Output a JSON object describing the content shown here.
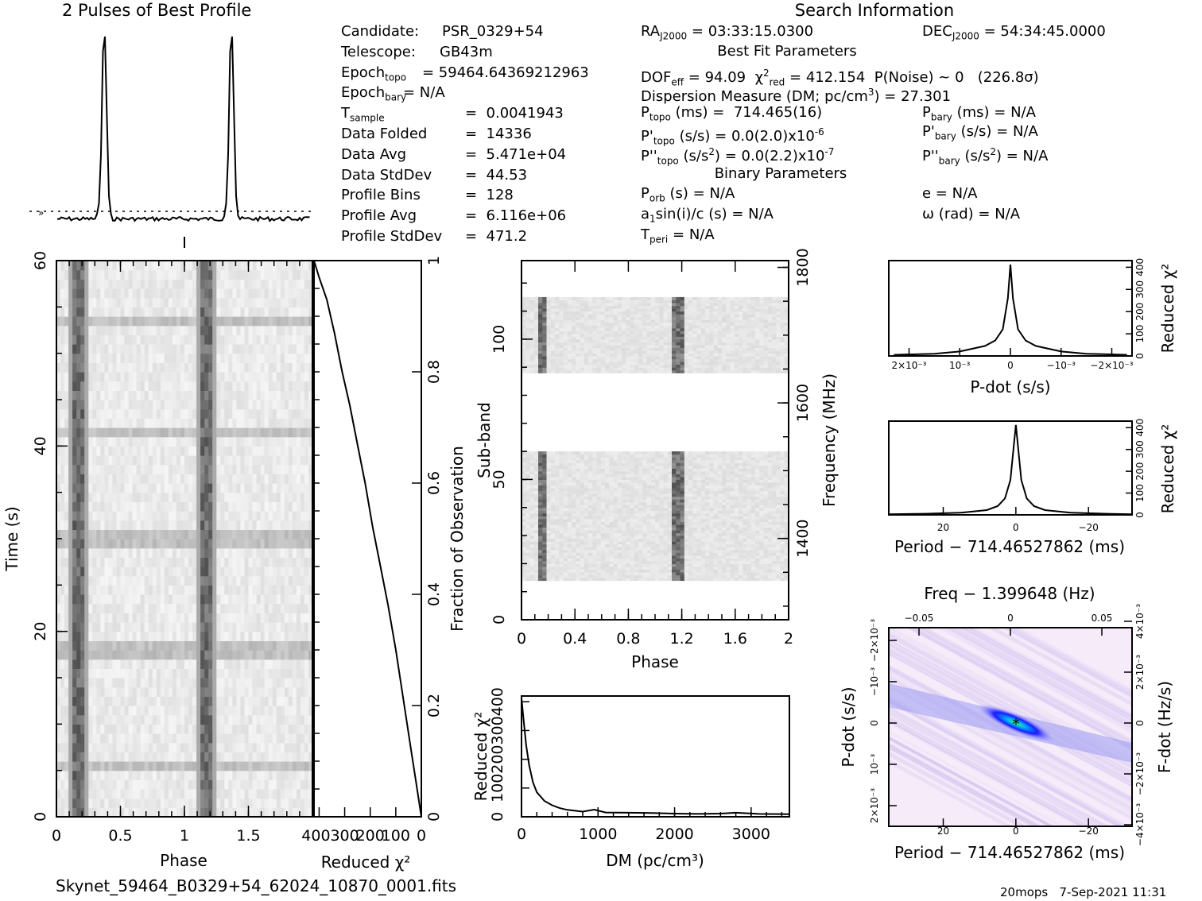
{
  "profile": {
    "title": "2 Pulses of Best Profile",
    "values": [
      0,
      0,
      0,
      0,
      0,
      0,
      0,
      0,
      0,
      0,
      0,
      0,
      0,
      0,
      0,
      0,
      0,
      0,
      0,
      0,
      0.02,
      0.08,
      0.35,
      0.92,
      1.0,
      0.55,
      0.12,
      0.02,
      0,
      0,
      0,
      0,
      0,
      0,
      0,
      0,
      0,
      0,
      0,
      0,
      0,
      0,
      0,
      0,
      0,
      0,
      0,
      0,
      0,
      0,
      0,
      0,
      0,
      0,
      0,
      0,
      0,
      0,
      0,
      0,
      0,
      0,
      0,
      0
    ]
  },
  "info": {
    "search_title": "Search Information",
    "col1": [
      {
        "k": "Candidate:",
        "v": "PSR_0329+54"
      },
      {
        "k": "Telescope:",
        "v": "GB43m"
      },
      {
        "k": "Epoch",
        "sub": "topo",
        "v": "= 59464.64369212963"
      },
      {
        "k": "Epoch",
        "sub": "bary",
        "v": "= N/A"
      },
      {
        "k": "T",
        "sub": "sample",
        "v": "=  0.0041943"
      },
      {
        "k": "Data Folded",
        "v": "=  14336"
      },
      {
        "k": "Data Avg",
        "v": "=  5.471e+04"
      },
      {
        "k": "Data StdDev",
        "v": "=  44.53"
      },
      {
        "k": "Profile Bins",
        "v": "=  128"
      },
      {
        "k": "Profile Avg",
        "v": "=  6.116e+06"
      },
      {
        "k": "Profile StdDev",
        "v": "=  471.2"
      }
    ],
    "ra": "RA",
    "ra_sub": "J2000",
    "ra_val": "= 03:33:15.0300",
    "dec": "DEC",
    "dec_sub": "J2000",
    "dec_val": "= 54:34:45.0000",
    "best_fit_title": "Best Fit Parameters",
    "dof": "DOF",
    "dof_sub": "eff",
    "dof_val": "= 94.09",
    "chi": "χ",
    "chi_sup": "2",
    "chi_sub": "red",
    "chi_val": "= 412.154",
    "pnoise": "P(Noise) ~ 0",
    "sigma": "(226.8σ)",
    "dm_line_a": "Dispersion Measure (DM; pc/cm",
    "dm_line_sup": "3",
    "dm_line_b": ") = 27.301",
    "ptopo": "P",
    "ptopo_sub": "topo",
    "ptopo_val": "(ms) =  714.465(16)",
    "pdtopo": "P'",
    "pdtopo_sub": "topo",
    "pdtopo_val": "(s/s) = 0.0(2.0)x10",
    "pdtopo_exp": "-6",
    "pddtopo": "P''",
    "pddtopo_sub": "topo",
    "pddtopo_val_a": "(s/s",
    "pddtopo_val_sup": "2",
    "pddtopo_val_b": ") = 0.0(2.2)x10",
    "pddtopo_exp": "-7",
    "pbary": "P",
    "pbary_sub": "bary",
    "pbary_val": "(ms) = N/A",
    "pdbary": "P'",
    "pdbary_sub": "bary",
    "pdbary_val": "(s/s) = N/A",
    "pddbary": "P''",
    "pddbary_sub": "bary",
    "pddbary_val_a": "(s/s",
    "pddbary_val_sup": "2",
    "pddbary_val_b": ") = N/A",
    "binary_title": "Binary Parameters",
    "porb": "P",
    "porb_sub": "orb",
    "porb_val": "(s) = N/A",
    "a1": "a",
    "a1_sub": "1",
    "a1_val": "sin(i)/c (s) = N/A",
    "tperi": "T",
    "tperi_sub": "peri",
    "tperi_val": "= N/A",
    "ecc": "e = N/A",
    "omega": "ω (rad) = N/A"
  },
  "chart_data": [
    {
      "type": "heatmap",
      "name": "time-phase",
      "xlabel": "Phase",
      "ylabel": "Time (s)",
      "xlim": [
        0,
        2
      ],
      "ylim": [
        0,
        60
      ],
      "xticks": [
        "0",
        "0.5",
        "1",
        "1.5"
      ],
      "yticks": [
        "0",
        "20",
        "40",
        "60"
      ],
      "pulse_phases": [
        0.15,
        1.15
      ],
      "bright_times": [
        5,
        17.5,
        29.5,
        41,
        53
      ]
    },
    {
      "type": "line",
      "name": "time-chi2",
      "xlabel": "Reduced χ²",
      "ylabel": "Fraction of Observation",
      "xticks": [
        "400",
        "300",
        "200",
        "100",
        "0"
      ],
      "yticks": [
        "0",
        "0.2",
        "0.4",
        "0.6",
        "0.8",
        "1"
      ],
      "x": [
        0,
        20,
        40,
        60,
        80,
        100,
        130,
        160,
        190,
        220,
        250,
        280,
        310,
        340,
        370,
        400,
        420
      ],
      "y": [
        0,
        0.06,
        0.12,
        0.18,
        0.24,
        0.3,
        0.38,
        0.45,
        0.52,
        0.6,
        0.67,
        0.74,
        0.8,
        0.87,
        0.93,
        0.97,
        1.0
      ]
    },
    {
      "type": "heatmap",
      "name": "subband-phase",
      "xlabel": "Phase",
      "ylabel": "Sub-band",
      "y2label": "Frequency (MHz)",
      "xlim": [
        0,
        2
      ],
      "xticks": [
        "0",
        "0.4",
        "0.8",
        "1.2",
        "1.6",
        "2"
      ],
      "yticks": [
        "0",
        "50",
        "100"
      ],
      "y2ticks": [
        "1400",
        "1600",
        "1800"
      ],
      "pulse_phases": [
        0.14,
        1.16
      ]
    },
    {
      "type": "line",
      "name": "dm-chi2",
      "xlabel": "DM (pc/cm³)",
      "ylabel": "Reduced χ²",
      "xticks": [
        "0",
        "1000",
        "2000",
        "3000"
      ],
      "yticks": [
        "0",
        "100",
        "200",
        "300",
        "400"
      ],
      "x": [
        0,
        30,
        60,
        100,
        150,
        200,
        300,
        400,
        500,
        600,
        800,
        950,
        1100,
        1400,
        1700,
        2000,
        2300,
        2600,
        2800,
        3100,
        3500
      ],
      "y": [
        412,
        330,
        250,
        180,
        120,
        85,
        55,
        40,
        30,
        24,
        18,
        25,
        15,
        14,
        13,
        11,
        10,
        11,
        14,
        10,
        9
      ]
    },
    {
      "type": "line",
      "name": "pdot-chi2",
      "xlabel": "P-dot (s/s)",
      "ylabel": "Reduced χ²",
      "xticks": [
        "2×10⁻³",
        "10⁻³",
        "0",
        "−10⁻³",
        "−2×10⁻³"
      ],
      "yticks": [
        "0",
        "100",
        "200",
        "300",
        "400"
      ],
      "x": [
        2.3,
        1.5,
        1.0,
        0.5,
        0.3,
        0.15,
        0.05,
        0,
        -0.05,
        -0.15,
        -0.3,
        -0.5,
        -1.0,
        -1.5,
        -2.3
      ],
      "y": [
        5,
        10,
        20,
        45,
        70,
        120,
        260,
        412,
        260,
        120,
        70,
        45,
        20,
        10,
        5
      ]
    },
    {
      "type": "line",
      "name": "period-chi2",
      "xlabel": "Period − 714.46527862 (ms)",
      "ylabel": "Reduced χ²",
      "xticks": [
        "20",
        "0",
        "−20"
      ],
      "yticks": [
        "0",
        "100",
        "200",
        "300",
        "400"
      ],
      "x": [
        35,
        25,
        15,
        8,
        5,
        3,
        1.5,
        0.5,
        0,
        -0.5,
        -1.5,
        -3,
        -5,
        -8,
        -15,
        -25,
        -32
      ],
      "y": [
        3,
        5,
        10,
        22,
        40,
        75,
        160,
        330,
        412,
        330,
        160,
        75,
        40,
        22,
        10,
        5,
        3
      ]
    },
    {
      "type": "heatmap",
      "name": "period-pdot",
      "title": "Freq − 1.399648 (Hz)",
      "xlabel": "Period − 714.46527862 (ms)",
      "ylabel": "P-dot (s/s)",
      "y2label": "F-dot (Hz/s)",
      "xticks": [
        "20",
        "0",
        "−20"
      ],
      "x2ticks": [
        "−0.05",
        "0",
        "0.05"
      ],
      "yticks": [
        "2×10⁻³",
        "10⁻³",
        "0",
        "−10⁻³",
        "−2×10⁻³"
      ],
      "y2ticks": [
        "−4×10⁻³",
        "−2×10⁻³",
        "0",
        "2×10⁻³",
        "4×10⁻³"
      ]
    }
  ],
  "footer": {
    "filename": "Skynet_59464_B0329+54_62024_10870_0001.fits",
    "stamp": "20mops   7-Sep-2021 11:31"
  },
  "colors": {
    "pulse": "#444444",
    "background": "#ffffff",
    "peak": "#1a1aff",
    "max": "#33ff66"
  }
}
